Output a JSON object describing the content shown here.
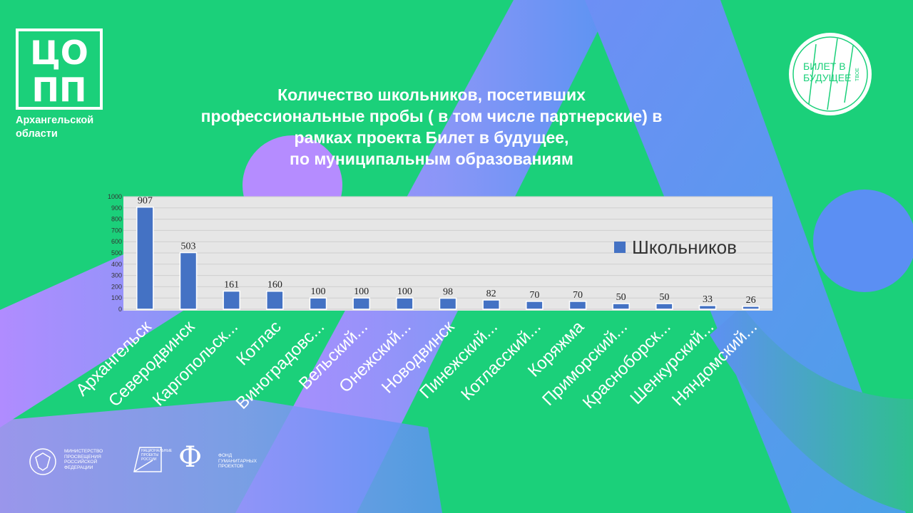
{
  "slide": {
    "title": "Количество школьников, посетивших\nпрофессиональные пробы ( в том числе партнерские) в\nрамках проекта Билет в будущее,\nпо муниципальным образованиям",
    "logo_left": {
      "letters_top": "ЦО",
      "letters_bottom": "ПП",
      "caption": "Архангельской\nобласти"
    },
    "logo_right": {
      "line1": "БИЛЕТ В",
      "line2": "БУДУЩЕЕ",
      "small": "ТВОЕ"
    },
    "footer": {
      "ministry": "Министерство\nпросвещения\nРоссийской\nФедерации",
      "national_projects": "Национальные\nпроекты\nРоссии",
      "fund_letter": "Ф",
      "fund": "Фонд\nгуманитарных\nпроектов"
    },
    "colors": {
      "background": "#1bd07a",
      "purple": "#b58cff",
      "blue": "#5b8ff3",
      "bar": "#4472c4",
      "plot_area": "#e6e6e6"
    }
  },
  "chart_data": {
    "type": "bar",
    "title": "",
    "xlabel": "",
    "ylabel": "",
    "ylim": [
      0,
      1000
    ],
    "yticks": [
      0,
      100,
      200,
      300,
      400,
      500,
      600,
      700,
      800,
      900,
      1000
    ],
    "grid": true,
    "legend_position": "right",
    "categories": [
      "Архангельск",
      "Северодвинск",
      "Каргопольск...",
      "Котлас",
      "Виноградовс...",
      "Вельский...",
      "Онежский...",
      "Новодвинск",
      "Пинежский...",
      "Котласский...",
      "Коряжма",
      "Приморский...",
      "Красноборск...",
      "Шенкурский...",
      "Няндомский..."
    ],
    "series": [
      {
        "name": "Школьников",
        "color": "#4472c4",
        "values": [
          907,
          503,
          161,
          160,
          100,
          100,
          100,
          98,
          82,
          70,
          70,
          50,
          50,
          33,
          26
        ]
      }
    ]
  }
}
